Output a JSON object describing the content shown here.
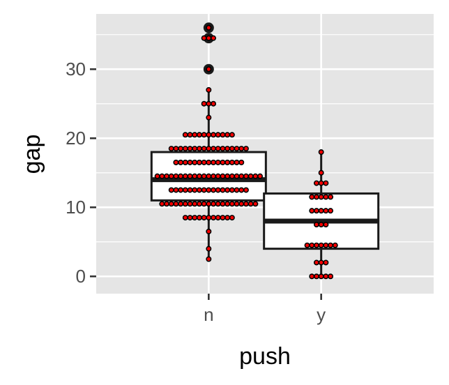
{
  "chart_data": {
    "type": "box",
    "xlabel": "push",
    "ylabel": "gap",
    "categories": [
      "n",
      "y"
    ],
    "ylim": [
      -2.5,
      38
    ],
    "yticks": [
      0,
      10,
      20,
      30
    ],
    "grid": true,
    "boxes": [
      {
        "category": "n",
        "whisker_low": 2.5,
        "q1": 11,
        "median": 14,
        "q3": 18,
        "whisker_high": 27,
        "outliers": [
          30,
          34.5,
          36
        ]
      },
      {
        "category": "y",
        "whisker_low": 0,
        "q1": 4,
        "median": 8,
        "q3": 12,
        "whisker_high": 18,
        "outliers": []
      }
    ],
    "dot_groups": [
      {
        "category": "n",
        "y": 2.5,
        "count": 1
      },
      {
        "category": "n",
        "y": 4,
        "count": 1
      },
      {
        "category": "n",
        "y": 6.5,
        "count": 1
      },
      {
        "category": "n",
        "y": 8.5,
        "count": 11
      },
      {
        "category": "n",
        "y": 10.5,
        "count": 21
      },
      {
        "category": "n",
        "y": 12.5,
        "count": 17
      },
      {
        "category": "n",
        "y": 14.5,
        "count": 23
      },
      {
        "category": "n",
        "y": 16.5,
        "count": 15
      },
      {
        "category": "n",
        "y": 18.5,
        "count": 17
      },
      {
        "category": "n",
        "y": 20.5,
        "count": 11
      },
      {
        "category": "n",
        "y": 23,
        "count": 1
      },
      {
        "category": "n",
        "y": 25,
        "count": 3
      },
      {
        "category": "n",
        "y": 27,
        "count": 1
      },
      {
        "category": "n",
        "y": 30,
        "count": 1
      },
      {
        "category": "n",
        "y": 34.5,
        "count": 3
      },
      {
        "category": "n",
        "y": 36,
        "count": 1
      },
      {
        "category": "y",
        "y": 0,
        "count": 5
      },
      {
        "category": "y",
        "y": 2,
        "count": 3
      },
      {
        "category": "y",
        "y": 4.5,
        "count": 7
      },
      {
        "category": "y",
        "y": 7.5,
        "count": 3
      },
      {
        "category": "y",
        "y": 9.5,
        "count": 5
      },
      {
        "category": "y",
        "y": 11.5,
        "count": 5
      },
      {
        "category": "y",
        "y": 13.5,
        "count": 3
      },
      {
        "category": "y",
        "y": 15,
        "count": 1
      },
      {
        "category": "y",
        "y": 18,
        "count": 1
      }
    ],
    "colors": {
      "panel": "#e5e5e5",
      "grid": "#ffffff",
      "box_fill": "#ffffff",
      "box_line": "#1a1a1a",
      "dot_fill": "#ff0000",
      "dot_edge": "#000000",
      "tick": "#333333"
    }
  }
}
